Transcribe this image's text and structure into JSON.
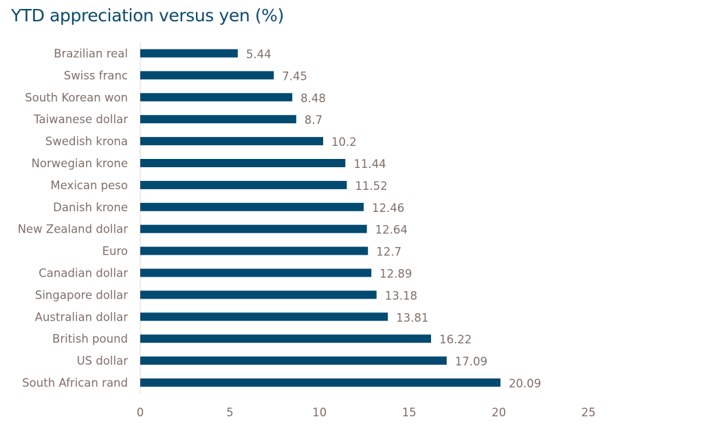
{
  "chart_data": {
    "type": "bar",
    "orientation": "horizontal",
    "title": "YTD appreciation versus yen (%)",
    "categories": [
      "Brazilian real",
      "Swiss franc",
      "South Korean won",
      "Taiwanese dollar",
      "Swedish krona",
      "Norwegian krone",
      "Mexican peso",
      "Danish krone",
      "New Zealand dollar",
      "Euro",
      "Canadian dollar",
      "Singapore dollar",
      "Australian dollar",
      "British pound",
      "US dollar",
      "South African rand"
    ],
    "values": [
      5.44,
      7.45,
      8.48,
      8.7,
      10.2,
      11.44,
      11.52,
      12.46,
      12.64,
      12.7,
      12.89,
      13.18,
      13.81,
      16.22,
      17.09,
      20.09
    ],
    "value_labels": [
      "5.44",
      "7.45",
      "8.48",
      "8.7",
      "10.2",
      "11.44",
      "11.52",
      "12.46",
      "12.64",
      "12.7",
      "12.89",
      "13.18",
      "13.81",
      "16.22",
      "17.09",
      "20.09"
    ],
    "xticks": [
      "0",
      "5",
      "10",
      "15",
      "20",
      "25"
    ],
    "xlim": [
      0,
      25
    ],
    "xlabel": "",
    "ylabel": "",
    "grid": false,
    "legend": "none",
    "colors": {
      "bar": "#034a70",
      "title": "#0b4a6e",
      "label": "#7f706a",
      "axis": "#d9d9d9"
    }
  }
}
